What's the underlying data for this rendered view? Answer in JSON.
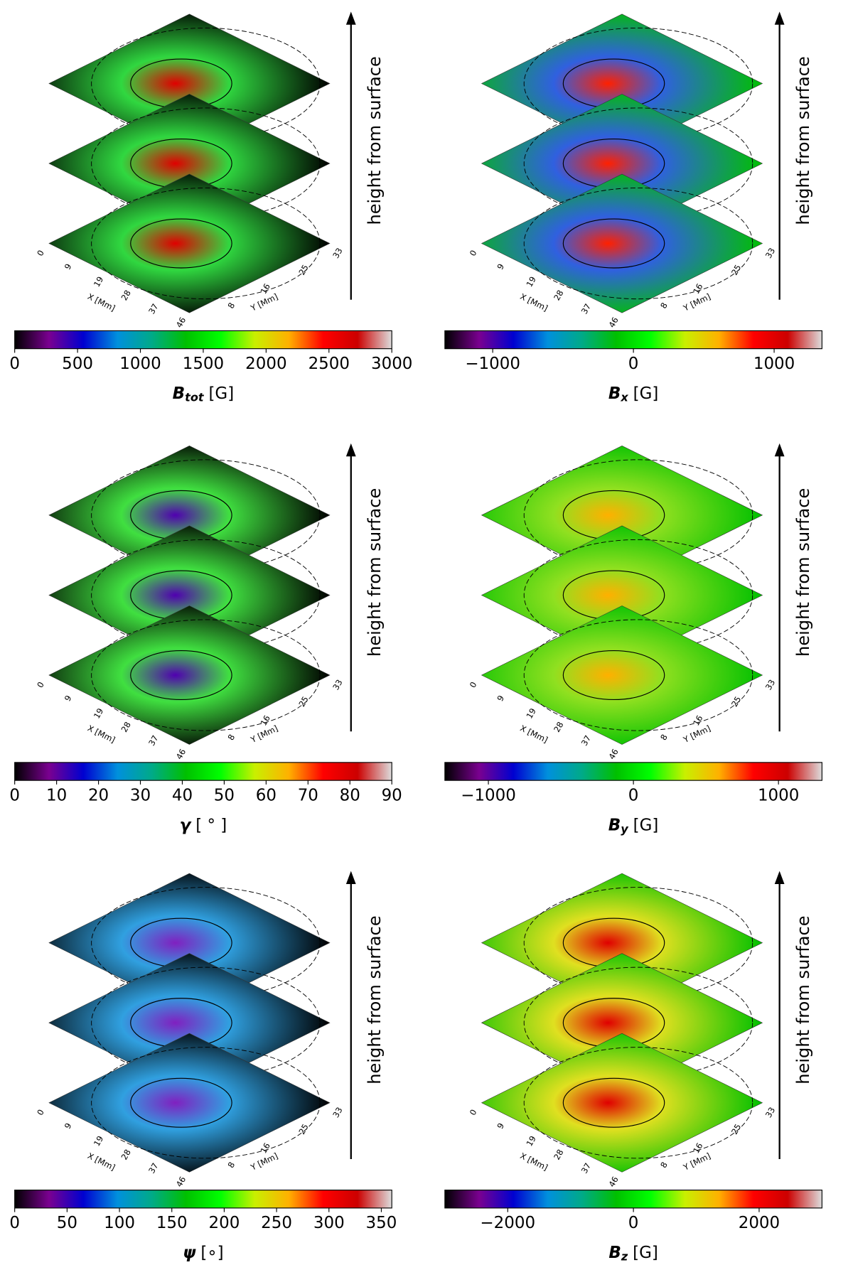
{
  "stack_axes": {
    "xlabel": "X [Mm]",
    "ylabel": "Y [Mm]",
    "xlim": [
      0,
      46
    ],
    "xticks": [
      0,
      9,
      19,
      28,
      37,
      46
    ],
    "ylim": [
      0,
      33
    ],
    "yticks": [
      8,
      16,
      25,
      33
    ],
    "arrow_label": "height from surface"
  },
  "chart_data": [
    {
      "type": "layer-stack",
      "clabel": {
        "symbol": "B",
        "subscript": "tot",
        "unit": "[G]"
      },
      "clim": [
        0,
        3000
      ],
      "cticks": [
        0,
        500,
        1000,
        1500,
        2000,
        2500,
        3000
      ],
      "colormap": [
        "#000000",
        "#7a0090",
        "#0000d0",
        "#0090dd",
        "#00aa88",
        "#00c000",
        "#00ff00",
        "#c8f000",
        "#ffb000",
        "#ff0000",
        "#cc0000",
        "#dddddd"
      ],
      "layer_colors": [
        "#e00000",
        "#30d840",
        "#000000"
      ]
    },
    {
      "type": "layer-stack",
      "clabel": {
        "symbol": "B",
        "subscript": "x",
        "unit": "[G]"
      },
      "clim": [
        -1340,
        1340
      ],
      "cticks": [
        {
          "value": -1000,
          "label": "−1000"
        },
        0,
        1000
      ],
      "colormap": [
        "#000000",
        "#7a0090",
        "#0000d0",
        "#0090dd",
        "#00aa88",
        "#00c000",
        "#00ff00",
        "#c8f000",
        "#ffb000",
        "#ff0000",
        "#cc0000",
        "#dddddd"
      ],
      "layer_colors": [
        "#ff2000",
        "#3060e0",
        "#00c000"
      ]
    },
    {
      "type": "layer-stack",
      "clabel": {
        "symbol": "γ",
        "unit": "[ ° ]"
      },
      "clim": [
        0,
        90
      ],
      "cticks": [
        0,
        10,
        20,
        30,
        40,
        50,
        60,
        70,
        80,
        90
      ],
      "colormap": [
        "#000000",
        "#7a0090",
        "#0000d0",
        "#0090dd",
        "#00aa88",
        "#00c000",
        "#00ff00",
        "#c8f000",
        "#ffb000",
        "#ff0000",
        "#cc0000",
        "#dddddd"
      ],
      "layer_colors": [
        "#5000b0",
        "#40e040",
        "#000000"
      ]
    },
    {
      "type": "layer-stack",
      "clabel": {
        "symbol": "B",
        "subscript": "y",
        "unit": "[G]"
      },
      "clim": [
        -1300,
        1300
      ],
      "cticks": [
        {
          "value": -1000,
          "label": "−1000"
        },
        0,
        1000
      ],
      "colormap": [
        "#000000",
        "#7a0090",
        "#0000d0",
        "#0090dd",
        "#00aa88",
        "#00c000",
        "#00ff00",
        "#c8f000",
        "#ffb000",
        "#ff0000",
        "#cc0000",
        "#dddddd"
      ],
      "layer_colors": [
        "#ffb000",
        "#90e020",
        "#00c000"
      ]
    },
    {
      "type": "layer-stack",
      "clabel": {
        "symbol": "ψ",
        "unit": "[∘]"
      },
      "clim": [
        0,
        360
      ],
      "cticks": [
        0,
        50,
        100,
        150,
        200,
        250,
        300,
        350
      ],
      "colormap": [
        "#000000",
        "#7a0090",
        "#0000d0",
        "#0090dd",
        "#00aa88",
        "#00c000",
        "#00ff00",
        "#c8f000",
        "#ffb000",
        "#ff0000",
        "#cc0000",
        "#dddddd"
      ],
      "layer_colors": [
        "#8020c0",
        "#30a0e0",
        "#000000"
      ]
    },
    {
      "type": "layer-stack",
      "clabel": {
        "symbol": "B",
        "subscript": "z",
        "unit": "[G]"
      },
      "clim": [
        -3000,
        3000
      ],
      "cticks": [
        {
          "value": -2000,
          "label": "−2000"
        },
        0,
        2000
      ],
      "colormap": [
        "#000000",
        "#7a0090",
        "#0000d0",
        "#0090dd",
        "#00aa88",
        "#00c000",
        "#00ff00",
        "#c8f000",
        "#ffb000",
        "#ff0000",
        "#cc0000",
        "#dddddd"
      ],
      "layer_colors": [
        "#e00000",
        "#e0e020",
        "#00c000"
      ]
    }
  ]
}
